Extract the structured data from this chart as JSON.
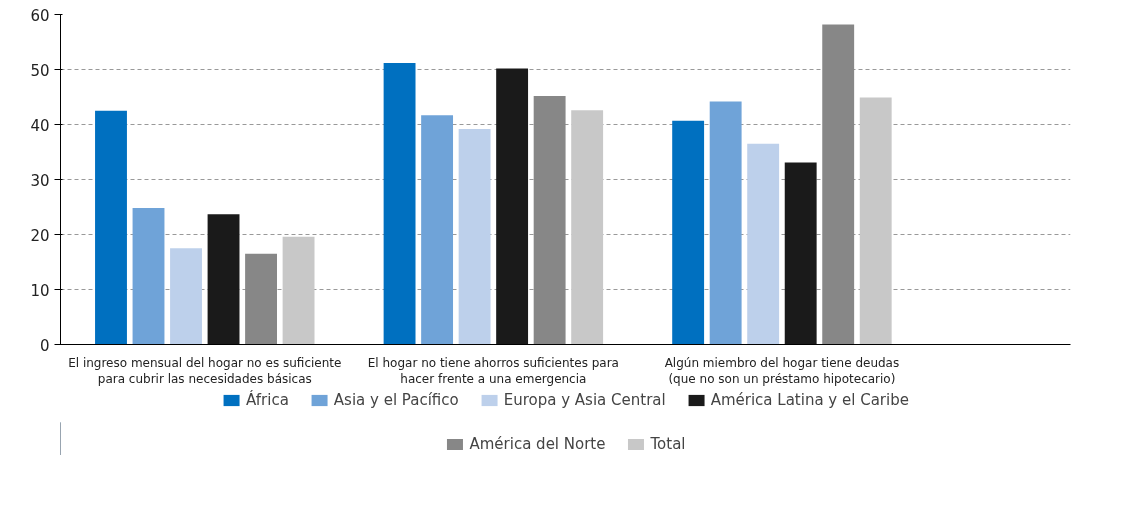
{
  "chart_data": {
    "type": "bar",
    "categories": [
      "El ingreso mensual del hogar no es suficiente\npara cubrir las necesidades básicas",
      "El hogar no tiene ahorros suficientes para\nhacer frente a una emergencia",
      "Algún miembro del hogar tiene deudas\n(que no son un préstamo hipotecario)"
    ],
    "series": [
      {
        "name": "África",
        "color": "#0070c0",
        "values": [
          42.5,
          51.2,
          40.7
        ]
      },
      {
        "name": "Asia y el Pacífico",
        "color": "#6fa3d8",
        "values": [
          24.8,
          41.7,
          44.2
        ]
      },
      {
        "name": "Europa y Asia Central",
        "color": "#bdd0eb",
        "values": [
          17.5,
          39.2,
          36.5
        ]
      },
      {
        "name": "América Latina y el Caribe",
        "color": "#1a1a1a",
        "values": [
          23.7,
          50.2,
          33.1
        ]
      },
      {
        "name": "América del Norte",
        "color": "#878787",
        "values": [
          16.5,
          45.2,
          58.2
        ]
      },
      {
        "name": "Total",
        "color": "#c8c8c8",
        "values": [
          19.6,
          42.6,
          44.9
        ]
      }
    ],
    "ylim": [
      0,
      60
    ],
    "yticks": [
      0,
      10,
      20,
      30,
      40,
      50,
      60
    ],
    "grid": "y",
    "legend": "bottom"
  }
}
